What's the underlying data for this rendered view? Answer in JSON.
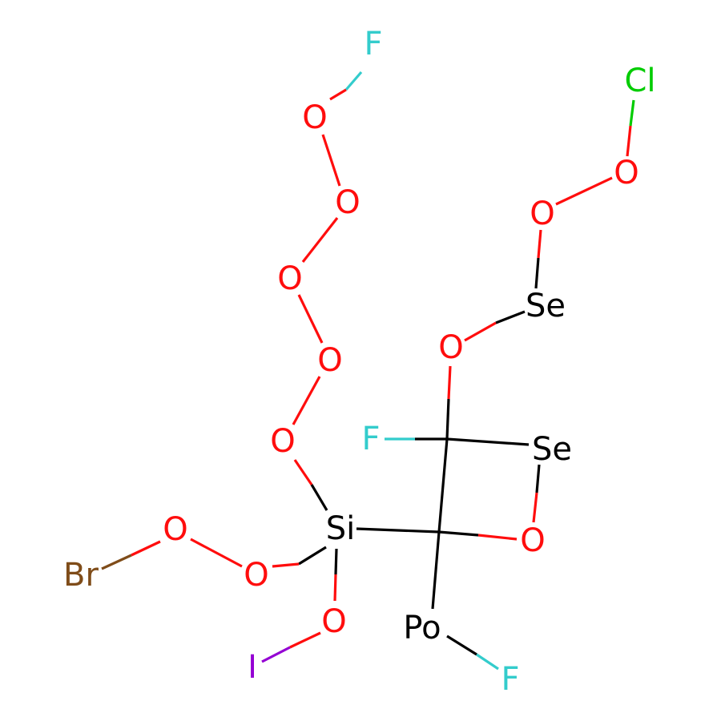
{
  "diagram": {
    "type": "molecule-structure",
    "atoms": [
      {
        "id": "F1",
        "label": "F",
        "color": "#33CCCC"
      },
      {
        "id": "O1",
        "label": "O",
        "color": "#FF0D0D"
      },
      {
        "id": "O2",
        "label": "O",
        "color": "#FF0D0D"
      },
      {
        "id": "O3",
        "label": "O",
        "color": "#FF0D0D"
      },
      {
        "id": "O4",
        "label": "O",
        "color": "#FF0D0D"
      },
      {
        "id": "O5",
        "label": "O",
        "color": "#FF0D0D"
      },
      {
        "id": "Si",
        "label": "Si",
        "color": "#000000"
      },
      {
        "id": "O6",
        "label": "O",
        "color": "#FF0D0D"
      },
      {
        "id": "O7",
        "label": "O",
        "color": "#FF0D0D"
      },
      {
        "id": "Br",
        "label": "Br",
        "color": "#7F4C19"
      },
      {
        "id": "O8",
        "label": "O",
        "color": "#FF0D0D"
      },
      {
        "id": "I",
        "label": "I",
        "color": "#9400D3"
      },
      {
        "id": "F2",
        "label": "F",
        "color": "#33CCCC"
      },
      {
        "id": "Se2",
        "label": "Se",
        "color": "#000000"
      },
      {
        "id": "O9",
        "label": "O",
        "color": "#FF0D0D"
      },
      {
        "id": "Po",
        "label": "Po",
        "color": "#000000"
      },
      {
        "id": "F3",
        "label": "F",
        "color": "#33CCCC"
      },
      {
        "id": "O10",
        "label": "O",
        "color": "#FF0D0D"
      },
      {
        "id": "Se1",
        "label": "Se",
        "color": "#000000"
      },
      {
        "id": "O11",
        "label": "O",
        "color": "#FF0D0D"
      },
      {
        "id": "O12",
        "label": "O",
        "color": "#FF0D0D"
      },
      {
        "id": "Cl",
        "label": "Cl",
        "color": "#00CC00"
      }
    ],
    "bonds": [
      [
        "F1",
        "O1"
      ],
      [
        "O1",
        "O2"
      ],
      [
        "O2",
        "O3"
      ],
      [
        "O3",
        "O4"
      ],
      [
        "O4",
        "O5"
      ],
      [
        "O5",
        "Si"
      ],
      [
        "Si",
        "O6"
      ],
      [
        "O6",
        "O7"
      ],
      [
        "O7",
        "Br"
      ],
      [
        "Si",
        "O8"
      ],
      [
        "O8",
        "I"
      ],
      [
        "Si",
        "C2"
      ],
      [
        "C1",
        "F2"
      ],
      [
        "C1",
        "Se2"
      ],
      [
        "C1",
        "C2"
      ],
      [
        "C1",
        "O10"
      ],
      [
        "Se2",
        "O9"
      ],
      [
        "O9",
        "C2"
      ],
      [
        "C2",
        "Po"
      ],
      [
        "Po",
        "F3"
      ],
      [
        "O10",
        "Se1"
      ],
      [
        "Se1",
        "O11"
      ],
      [
        "O11",
        "O12"
      ],
      [
        "O12",
        "Cl"
      ]
    ]
  }
}
